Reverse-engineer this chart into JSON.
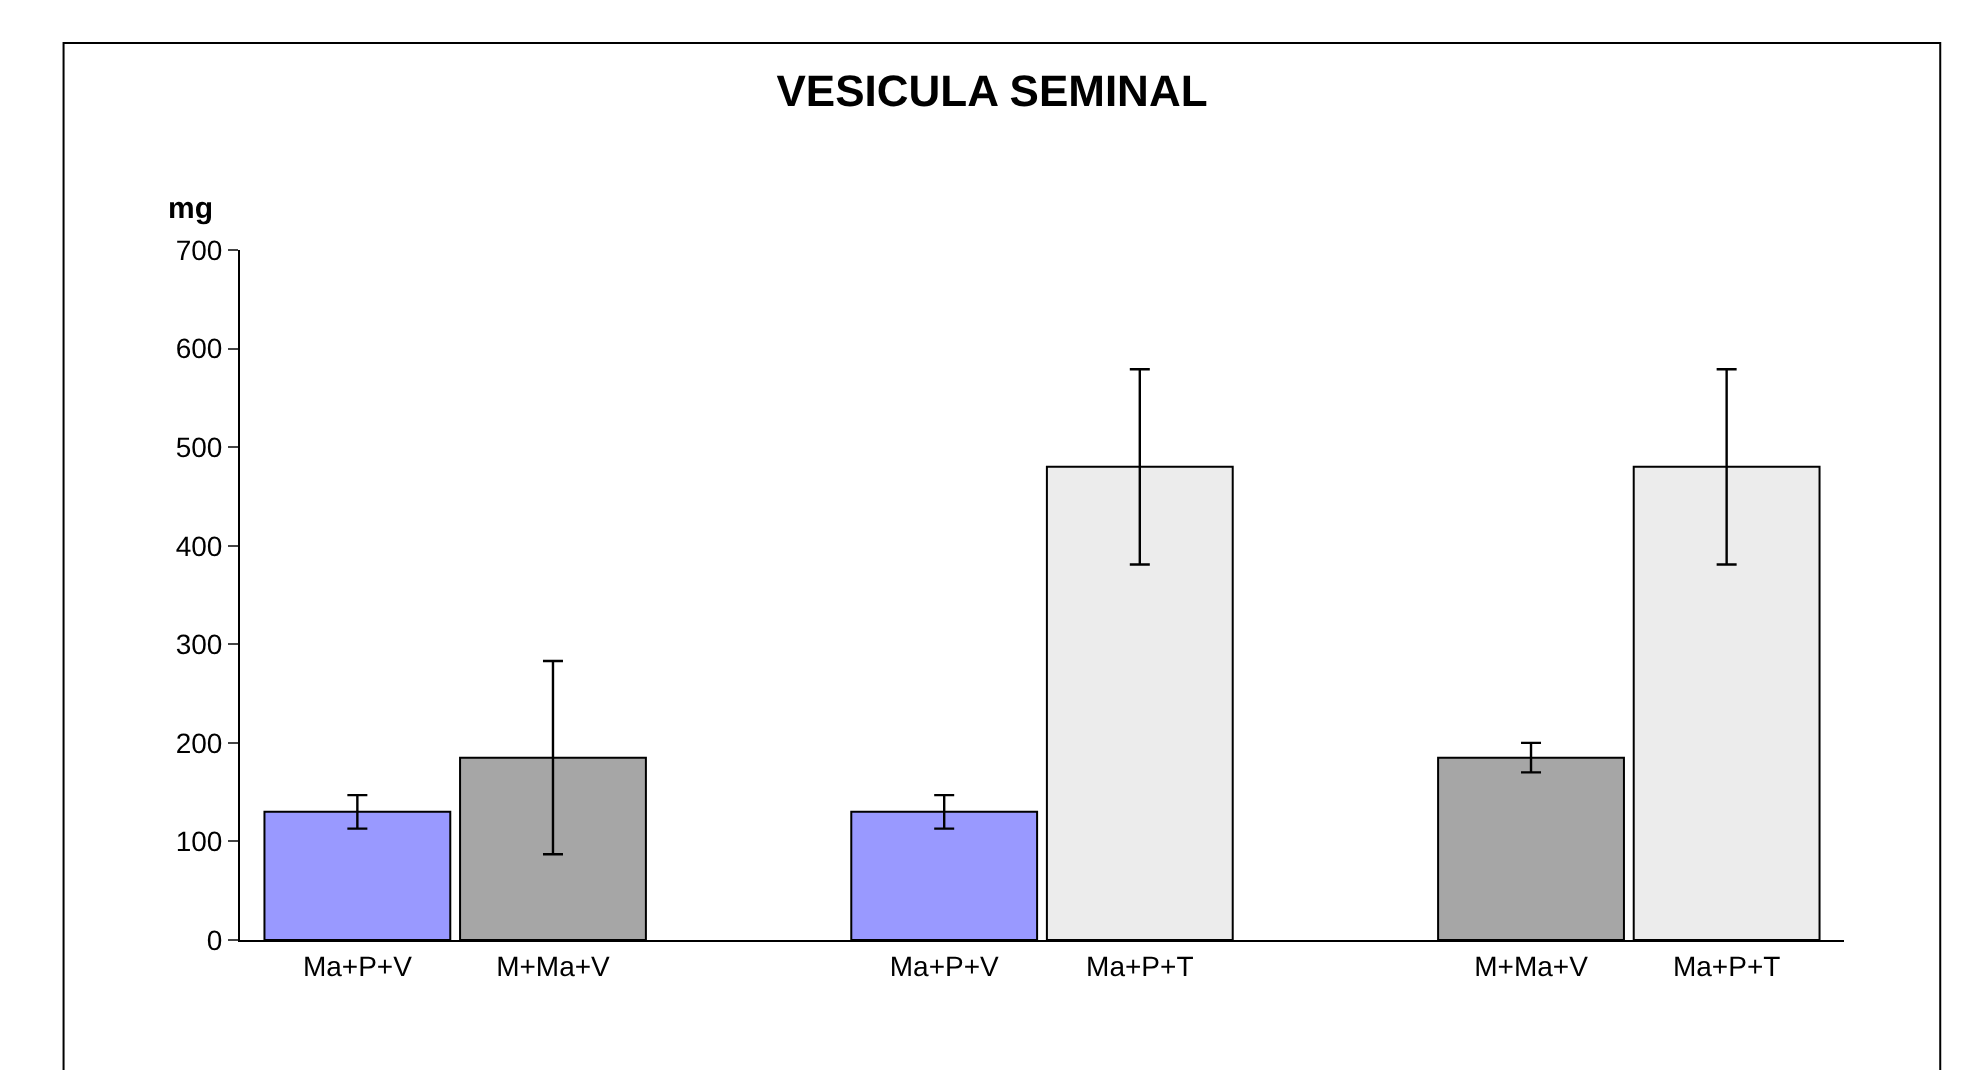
{
  "chart_data": {
    "type": "bar",
    "title": "VESICULA SEMINAL",
    "ylabel": "mg",
    "categories": [
      "Ma+P+V",
      "M+Ma+V",
      null,
      "Ma+P+V",
      "Ma+P+T",
      null,
      "M+Ma+V",
      "Ma+P+T"
    ],
    "values": [
      130,
      185,
      null,
      130,
      480,
      null,
      185,
      480
    ],
    "errors": [
      17,
      98,
      null,
      17,
      99,
      null,
      15,
      99
    ],
    "colors": [
      "#9999ff",
      "#a6a6a6",
      null,
      "#9999ff",
      "#ececec",
      null,
      "#a6a6a6",
      "#ececec"
    ],
    "ylim": [
      0,
      700
    ],
    "yticks": [
      0,
      100,
      200,
      300,
      400,
      500,
      600,
      700
    ]
  }
}
